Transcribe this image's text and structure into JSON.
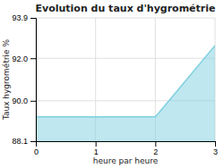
{
  "chart_data": {
    "type": "area",
    "title": "Evolution du taux d'hygrométrie",
    "x_label": "heure par heure",
    "y_label": "Taux hygrométrie %",
    "x": [
      0,
      1,
      2,
      2.05,
      3
    ],
    "values": [
      89.25,
      89.25,
      89.25,
      89.4,
      92.6
    ],
    "color": "#7ecfdf",
    "xlim": [
      0,
      3
    ],
    "ylim": [
      88.1,
      93.9
    ],
    "xticks": [
      0,
      1,
      2,
      3
    ],
    "yticks": [
      88.1,
      {
        "value": 90.0,
        "label": "90.0"
      },
      {
        "value": 92.0,
        "label": "92.0"
      },
      93.9
    ],
    "grid": true
  }
}
